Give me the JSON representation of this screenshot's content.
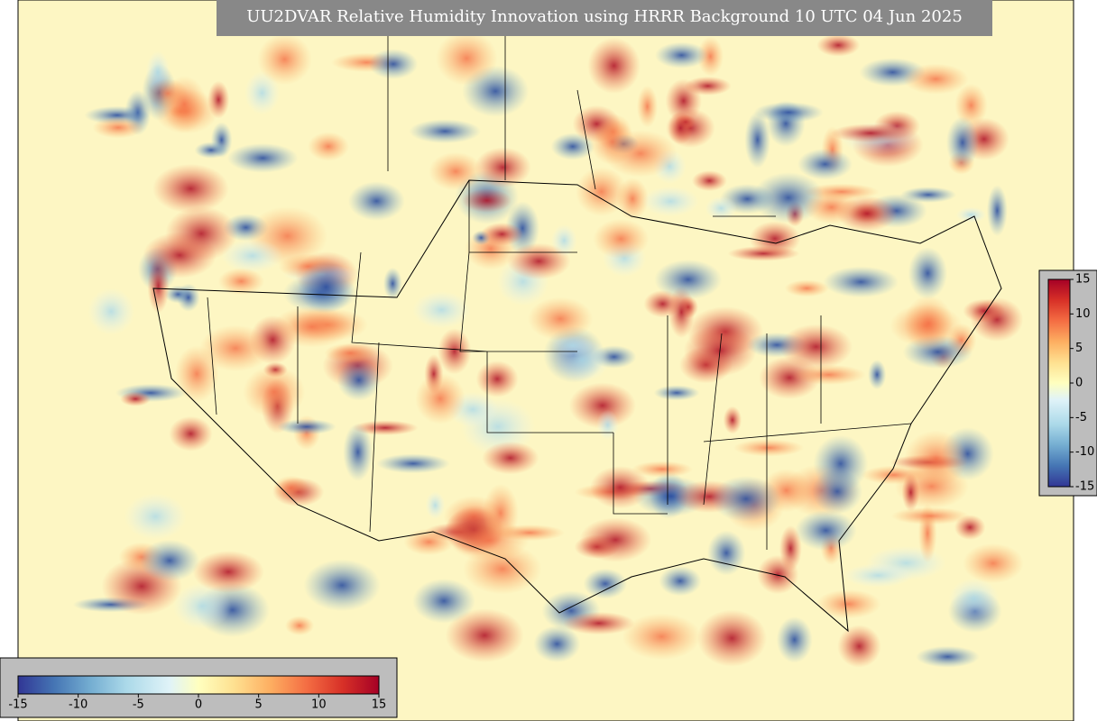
{
  "map": {
    "title": "UU2DVAR Relative Humidity Innovation using HRRR Background 10 UTC 04 Jun 2025",
    "colorbars": [
      {
        "orientation": "horizontal",
        "range": [
          -15,
          15
        ],
        "ticks": [
          -15,
          -10,
          -5,
          0,
          5,
          10,
          15
        ]
      },
      {
        "orientation": "vertical",
        "range": [
          -15,
          15
        ],
        "ticks": [
          -15,
          -10,
          -5,
          0,
          5,
          10,
          15
        ]
      }
    ]
  }
}
